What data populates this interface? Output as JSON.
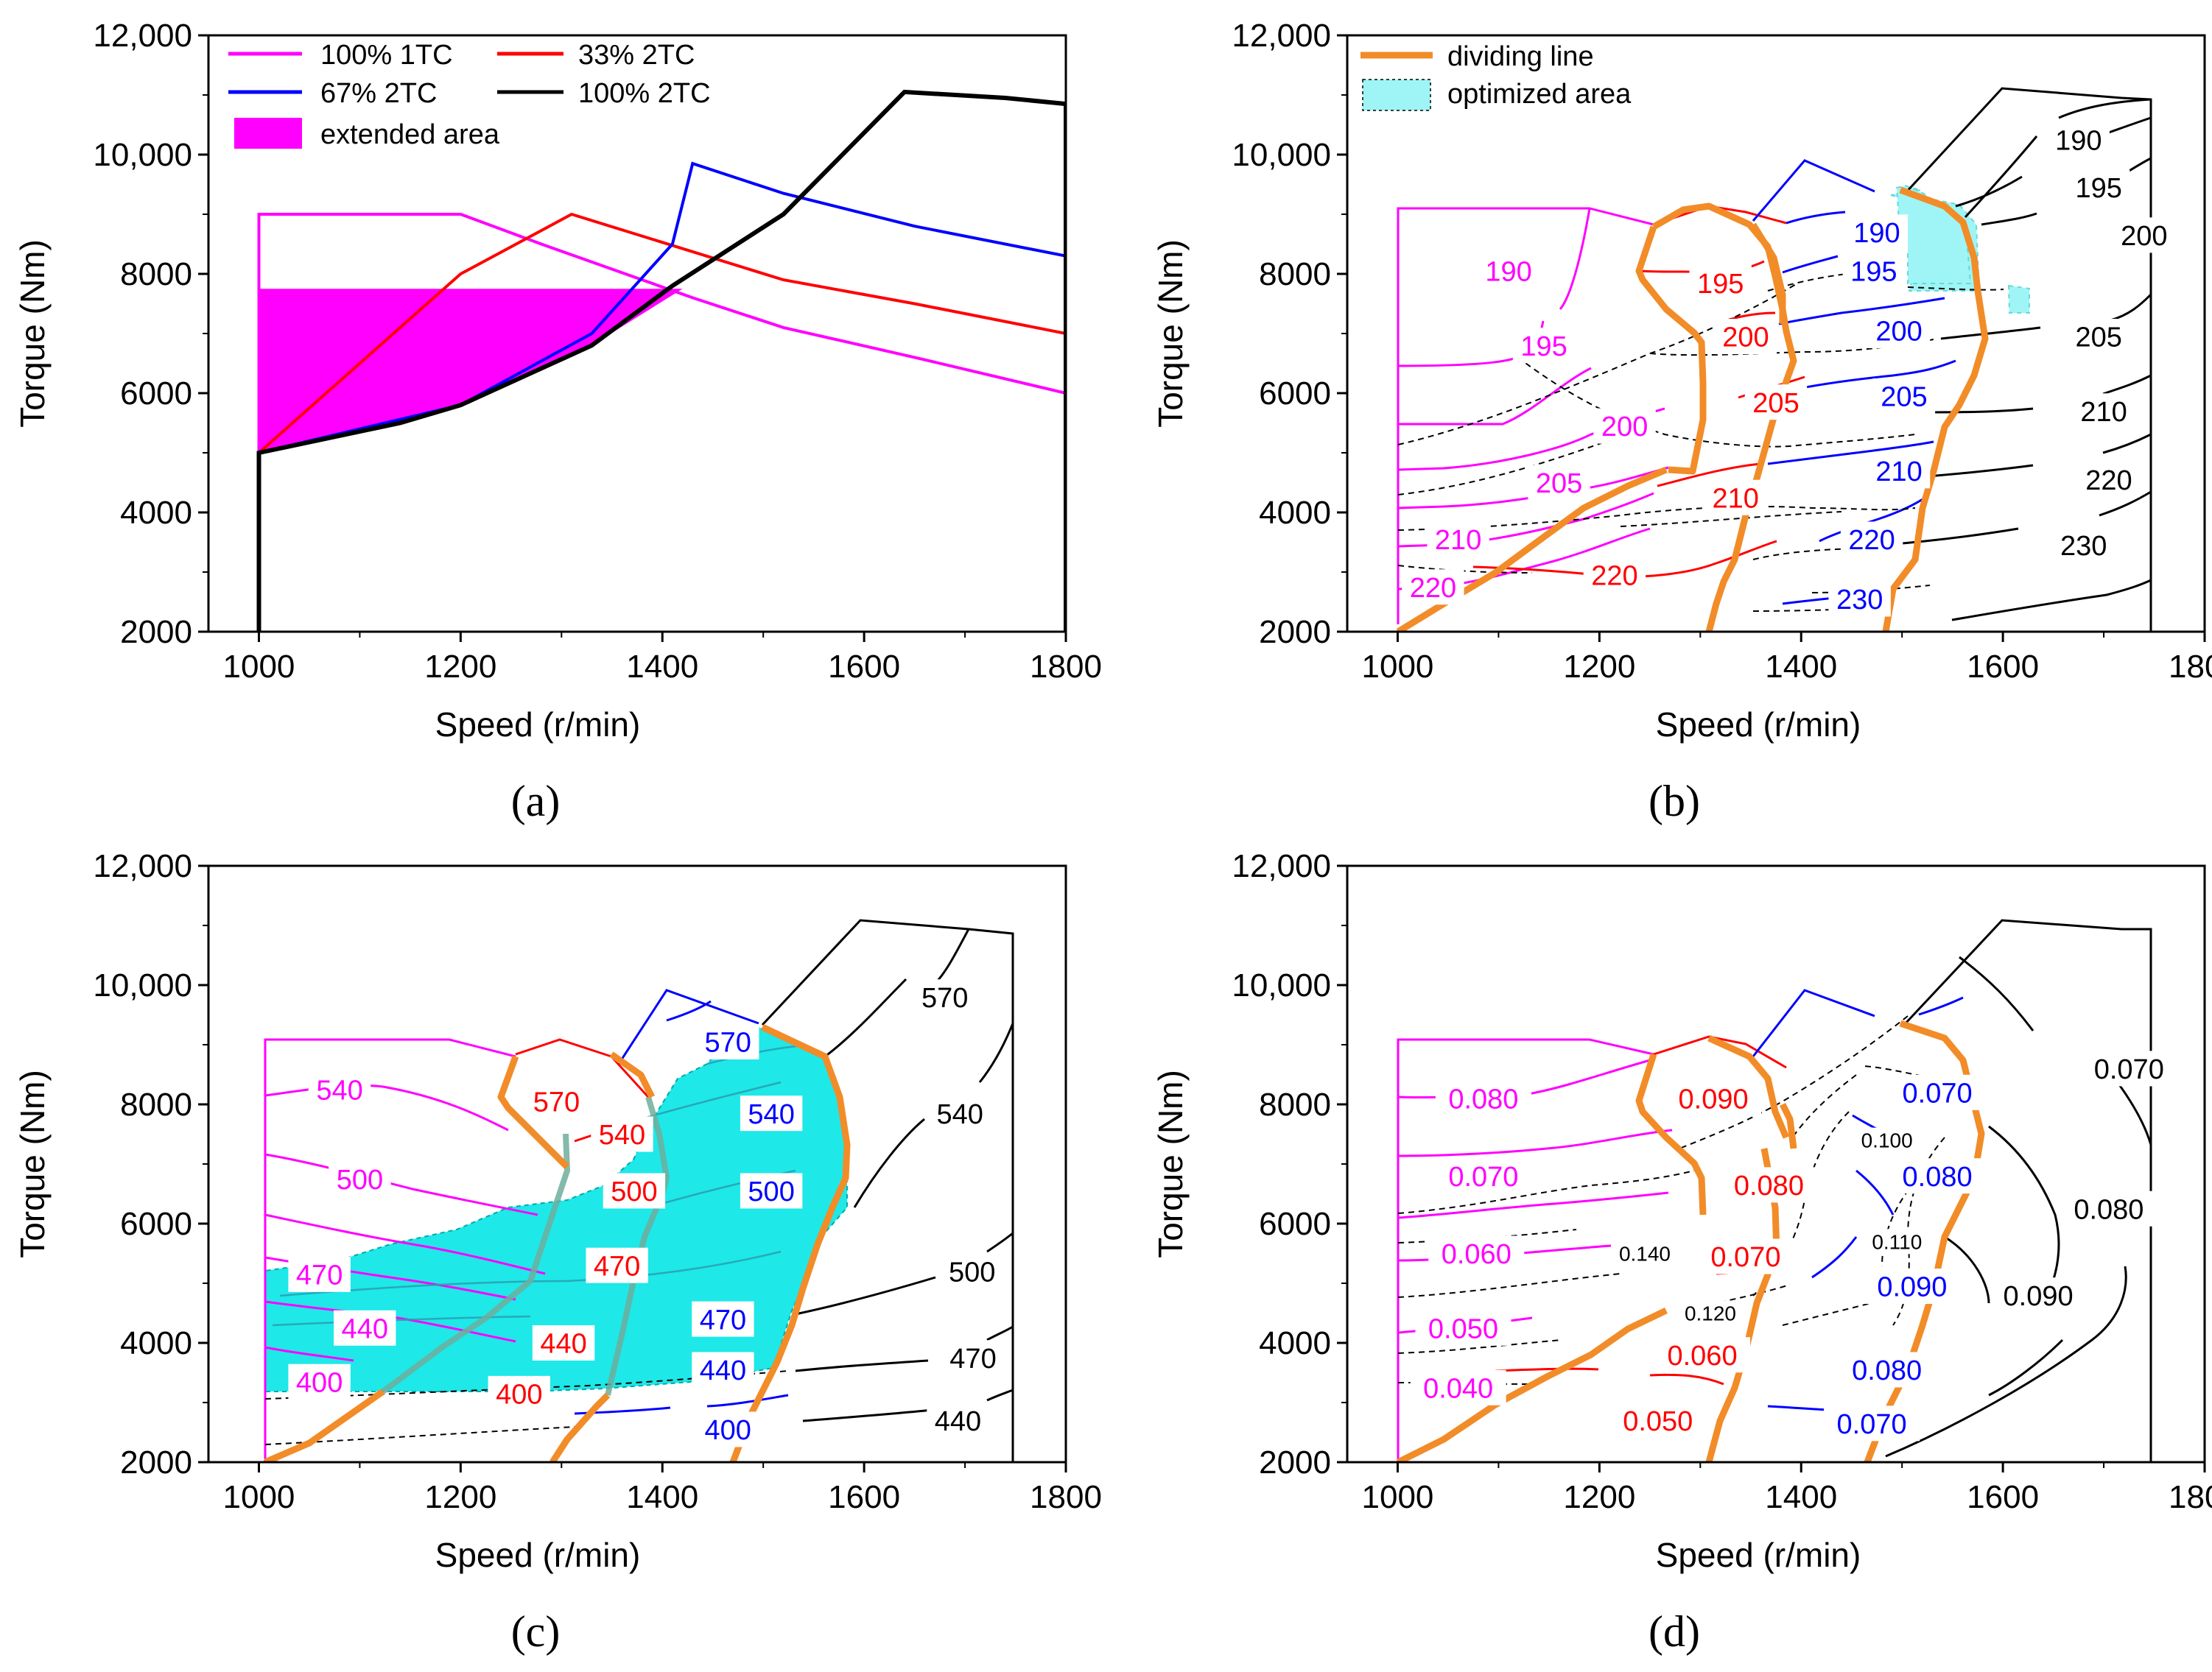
{
  "chart_data": [
    {
      "type": "line",
      "panel_label": "(a)",
      "xlabel": "Speed (r/min)",
      "ylabel": "Torque (Nm)",
      "xlim": [
        950,
        1800
      ],
      "ylim": [
        2000,
        12000
      ],
      "xticks": [
        "1000",
        "1200",
        "1400",
        "1600",
        "1800"
      ],
      "yticks": [
        "2000",
        "4000",
        "6000",
        "8000",
        "10,000",
        "12,000"
      ],
      "legend": [
        {
          "name": "100%  1TC",
          "color": "#ff00ff"
        },
        {
          "name": "33%  2TC",
          "color": "#ff0000"
        },
        {
          "name": "67%  2TC",
          "color": "#0000ff"
        },
        {
          "name": "100%  2TC",
          "color": "#000000"
        },
        {
          "name": "extended area",
          "color": "#ff00ff",
          "kind": "fill"
        }
      ],
      "series": [
        {
          "name": "100%  1TC",
          "color": "#ff00ff",
          "points": [
            [
              1000,
              2000
            ],
            [
              1000,
              9000
            ],
            [
              1200,
              9000
            ],
            [
              1280,
              8500
            ],
            [
              1430,
              7600
            ],
            [
              1520,
              7100
            ],
            [
              1650,
              6600
            ],
            [
              1800,
              6000
            ]
          ]
        },
        {
          "name": "33%  2TC",
          "color": "#ff0000",
          "points": [
            [
              1000,
              5000
            ],
            [
              1200,
              8000
            ],
            [
              1310,
              9000
            ],
            [
              1520,
              7900
            ],
            [
              1650,
              7500
            ],
            [
              1800,
              7000
            ]
          ]
        },
        {
          "name": "67%  2TC",
          "color": "#0000ff",
          "points": [
            [
              1000,
              5000
            ],
            [
              1200,
              5800
            ],
            [
              1330,
              7000
            ],
            [
              1410,
              8500
            ],
            [
              1430,
              9850
            ],
            [
              1520,
              9350
            ],
            [
              1650,
              8800
            ],
            [
              1800,
              8300
            ]
          ]
        },
        {
          "name": "100%  2TC",
          "color": "#000000",
          "points": [
            [
              1000,
              2000
            ],
            [
              1000,
              5000
            ],
            [
              1140,
              5500
            ],
            [
              1200,
              5800
            ],
            [
              1330,
              6800
            ],
            [
              1410,
              7800
            ],
            [
              1520,
              9000
            ],
            [
              1640,
              11050
            ],
            [
              1740,
              10950
            ],
            [
              1800,
              10850
            ],
            [
              1800,
              2000
            ]
          ]
        }
      ],
      "fill_region": {
        "name": "extended area",
        "points": [
          [
            1000,
            5000
          ],
          [
            1140,
            5500
          ],
          [
            1200,
            5800
          ],
          [
            1330,
            6800
          ],
          [
            1420,
            7750
          ],
          [
            1000,
            7750
          ]
        ]
      }
    },
    {
      "type": "contour",
      "panel_label": "(b)",
      "xlabel": "Speed (r/min)",
      "ylabel": "Torque (Nm)",
      "xlim": [
        950,
        1800
      ],
      "ylim": [
        2000,
        12000
      ],
      "xticks": [
        "1000",
        "1200",
        "1400",
        "1600",
        "1800"
      ],
      "yticks": [
        "2000",
        "4000",
        "6000",
        "8000",
        "10,000",
        "12,000"
      ],
      "legend": [
        {
          "name": "dividing line",
          "color": "#f28c28",
          "kind": "line"
        },
        {
          "name": "optimized area",
          "color": "#9ff5f5",
          "kind": "fill"
        }
      ],
      "contour_labels": [
        {
          "text": "190",
          "color": "#ff00ff",
          "x": 1110,
          "y": 8050
        },
        {
          "text": "195",
          "color": "#ff00ff",
          "x": 1145,
          "y": 6800
        },
        {
          "text": "200",
          "color": "#ff00ff",
          "x": 1225,
          "y": 5450
        },
        {
          "text": "205",
          "color": "#ff00ff",
          "x": 1160,
          "y": 4500
        },
        {
          "text": "210",
          "color": "#ff00ff",
          "x": 1060,
          "y": 3550
        },
        {
          "text": "220",
          "color": "#ff00ff",
          "x": 1035,
          "y": 2750
        },
        {
          "text": "195",
          "color": "#ff0000",
          "x": 1320,
          "y": 7850
        },
        {
          "text": "200",
          "color": "#ff0000",
          "x": 1345,
          "y": 6950
        },
        {
          "text": "205",
          "color": "#ff0000",
          "x": 1375,
          "y": 5850
        },
        {
          "text": "210",
          "color": "#ff0000",
          "x": 1335,
          "y": 4250
        },
        {
          "text": "220",
          "color": "#ff0000",
          "x": 1215,
          "y": 2950
        },
        {
          "text": "190",
          "color": "#0000ff",
          "x": 1475,
          "y": 8700
        },
        {
          "text": "195",
          "color": "#0000ff",
          "x": 1472,
          "y": 8050
        },
        {
          "text": "200",
          "color": "#0000ff",
          "x": 1497,
          "y": 7050
        },
        {
          "text": "205",
          "color": "#0000ff",
          "x": 1502,
          "y": 5950
        },
        {
          "text": "210",
          "color": "#0000ff",
          "x": 1497,
          "y": 4700
        },
        {
          "text": "220",
          "color": "#0000ff",
          "x": 1470,
          "y": 3550
        },
        {
          "text": "230",
          "color": "#0000ff",
          "x": 1458,
          "y": 2550
        },
        {
          "text": "190",
          "color": "#000000",
          "x": 1675,
          "y": 10250
        },
        {
          "text": "195",
          "color": "#000000",
          "x": 1695,
          "y": 9450
        },
        {
          "text": "200",
          "color": "#000000",
          "x": 1740,
          "y": 8650
        },
        {
          "text": "205",
          "color": "#000000",
          "x": 1695,
          "y": 6950
        },
        {
          "text": "210",
          "color": "#000000",
          "x": 1700,
          "y": 5700
        },
        {
          "text": "220",
          "color": "#000000",
          "x": 1705,
          "y": 4550
        },
        {
          "text": "230",
          "color": "#000000",
          "x": 1680,
          "y": 3450
        }
      ]
    },
    {
      "type": "contour",
      "panel_label": "(c)",
      "xlabel": "Speed (r/min)",
      "ylabel": "Torque (Nm)",
      "xlim": [
        950,
        1800
      ],
      "ylim": [
        2000,
        12000
      ],
      "xticks": [
        "1000",
        "1200",
        "1400",
        "1600",
        "1800"
      ],
      "yticks": [
        "2000",
        "4000",
        "6000",
        "8000",
        "10,000",
        "12,000"
      ],
      "contour_labels": [
        {
          "text": "540",
          "color": "#ff00ff",
          "x": 1080,
          "y": 8250
        },
        {
          "text": "500",
          "color": "#ff00ff",
          "x": 1100,
          "y": 6750
        },
        {
          "text": "470",
          "color": "#ff00ff",
          "x": 1060,
          "y": 5150
        },
        {
          "text": "440",
          "color": "#ff00ff",
          "x": 1105,
          "y": 4250
        },
        {
          "text": "400",
          "color": "#ff00ff",
          "x": 1060,
          "y": 3350
        },
        {
          "text": "570",
          "color": "#ff0000",
          "x": 1295,
          "y": 8050
        },
        {
          "text": "540",
          "color": "#ff0000",
          "x": 1360,
          "y": 7500
        },
        {
          "text": "500",
          "color": "#ff0000",
          "x": 1372,
          "y": 6550
        },
        {
          "text": "470",
          "color": "#ff0000",
          "x": 1355,
          "y": 5300
        },
        {
          "text": "440",
          "color": "#ff0000",
          "x": 1302,
          "y": 4000
        },
        {
          "text": "400",
          "color": "#ff0000",
          "x": 1258,
          "y": 3150
        },
        {
          "text": "570",
          "color": "#0000ff",
          "x": 1465,
          "y": 9050
        },
        {
          "text": "540",
          "color": "#0000ff",
          "x": 1508,
          "y": 7850
        },
        {
          "text": "500",
          "color": "#0000ff",
          "x": 1508,
          "y": 6550
        },
        {
          "text": "470",
          "color": "#0000ff",
          "x": 1460,
          "y": 4400
        },
        {
          "text": "440",
          "color": "#0000ff",
          "x": 1460,
          "y": 3550
        },
        {
          "text": "400",
          "color": "#0000ff",
          "x": 1465,
          "y": 2550
        },
        {
          "text": "570",
          "color": "#000000",
          "x": 1680,
          "y": 9800
        },
        {
          "text": "540",
          "color": "#000000",
          "x": 1695,
          "y": 7850
        },
        {
          "text": "500",
          "color": "#000000",
          "x": 1707,
          "y": 5200
        },
        {
          "text": "470",
          "color": "#000000",
          "x": 1708,
          "y": 3750
        },
        {
          "text": "440",
          "color": "#000000",
          "x": 1693,
          "y": 2700
        }
      ]
    },
    {
      "type": "contour",
      "panel_label": "(d)",
      "xlabel": "Speed (r/min)",
      "ylabel": "Torque (Nm)",
      "xlim": [
        950,
        1800
      ],
      "ylim": [
        2000,
        12000
      ],
      "xticks": [
        "1000",
        "1200",
        "1400",
        "1600",
        "1800"
      ],
      "yticks": [
        "2000",
        "4000",
        "6000",
        "8000",
        "10,000",
        "12,000"
      ],
      "contour_labels": [
        {
          "text": "0.080",
          "color": "#ff00ff",
          "x": 1085,
          "y": 8100
        },
        {
          "text": "0.070",
          "color": "#ff00ff",
          "x": 1085,
          "y": 6800
        },
        {
          "text": "0.060",
          "color": "#ff00ff",
          "x": 1078,
          "y": 5500
        },
        {
          "text": "0.050",
          "color": "#ff00ff",
          "x": 1065,
          "y": 4250
        },
        {
          "text": "0.040",
          "color": "#ff00ff",
          "x": 1060,
          "y": 3250
        },
        {
          "text": "0.090",
          "color": "#ff0000",
          "x": 1313,
          "y": 8100
        },
        {
          "text": "0.080",
          "color": "#ff0000",
          "x": 1368,
          "y": 6650
        },
        {
          "text": "0.070",
          "color": "#ff0000",
          "x": 1345,
          "y": 5450
        },
        {
          "text": "0.060",
          "color": "#ff0000",
          "x": 1302,
          "y": 3800
        },
        {
          "text": "0.050",
          "color": "#ff0000",
          "x": 1258,
          "y": 2700
        },
        {
          "text": "0.070",
          "color": "#0000ff",
          "x": 1535,
          "y": 8200
        },
        {
          "text": "0.080",
          "color": "#0000ff",
          "x": 1535,
          "y": 6800
        },
        {
          "text": "0.090",
          "color": "#0000ff",
          "x": 1510,
          "y": 4950
        },
        {
          "text": "0.080",
          "color": "#0000ff",
          "x": 1485,
          "y": 3550
        },
        {
          "text": "0.070",
          "color": "#0000ff",
          "x": 1470,
          "y": 2650
        },
        {
          "text": "0.100",
          "color": "#000000",
          "x": 1485,
          "y": 7400,
          "small": true
        },
        {
          "text": "0.110",
          "color": "#000000",
          "x": 1495,
          "y": 5700,
          "small": true
        },
        {
          "text": "0.140",
          "color": "#000000",
          "x": 1245,
          "y": 5500,
          "small": true
        },
        {
          "text": "0.120",
          "color": "#000000",
          "x": 1310,
          "y": 4500,
          "small": true
        },
        {
          "text": "0.070",
          "color": "#000000",
          "x": 1725,
          "y": 8600
        },
        {
          "text": "0.080",
          "color": "#000000",
          "x": 1705,
          "y": 6250
        },
        {
          "text": "0.090",
          "color": "#000000",
          "x": 1635,
          "y": 4800
        }
      ]
    }
  ]
}
